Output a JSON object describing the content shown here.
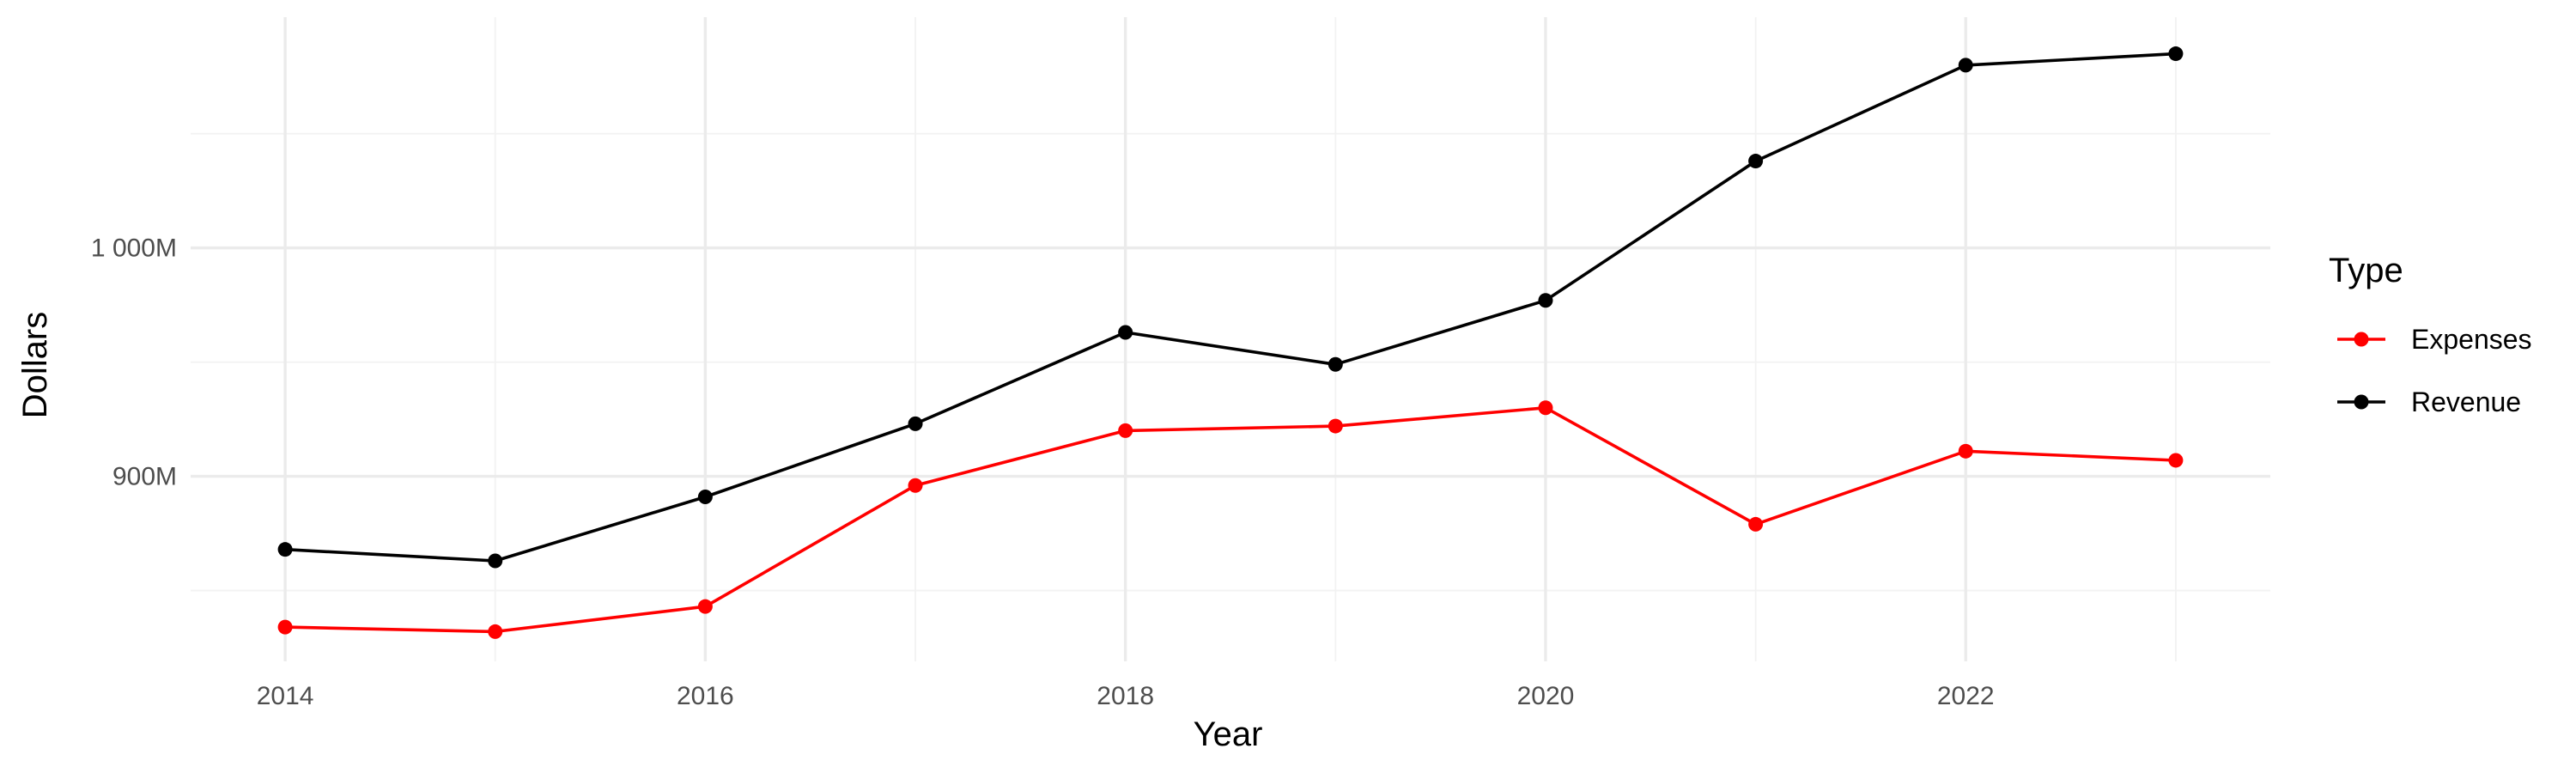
{
  "chart_data": {
    "type": "line",
    "xlabel": "Year",
    "ylabel": "Dollars",
    "x": [
      2014,
      2015,
      2016,
      2017,
      2018,
      2019,
      2020,
      2021,
      2022,
      2023
    ],
    "x_ticks": [
      2014,
      2016,
      2018,
      2020,
      2022
    ],
    "x_tick_labels": [
      "2014",
      "2016",
      "2018",
      "2020",
      "2022"
    ],
    "y_ticks": [
      900,
      1000
    ],
    "y_tick_labels": [
      "900M",
      "1 000M"
    ],
    "y_unit": "million dollars",
    "xlim": [
      2013.55,
      2023.45
    ],
    "ylim": [
      819,
      1101
    ],
    "grid": true,
    "legend": {
      "title": "Type",
      "position": "right"
    },
    "series": [
      {
        "name": "Expenses",
        "color": "#ff0000",
        "values": [
          834,
          832,
          843,
          896,
          920,
          922,
          930,
          879,
          911,
          907
        ]
      },
      {
        "name": "Revenue",
        "color": "#000000",
        "values": [
          868,
          863,
          891,
          923,
          963,
          949,
          977,
          1038,
          1080,
          1085
        ]
      }
    ]
  }
}
